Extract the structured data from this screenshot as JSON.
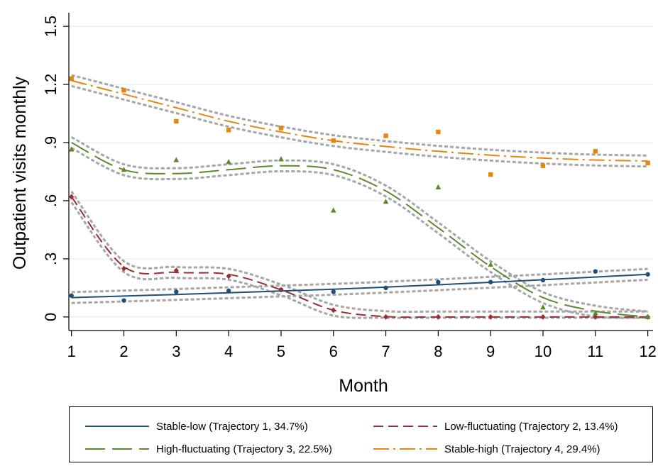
{
  "chart_data": {
    "type": "line",
    "xlabel": "Month",
    "ylabel": "Outpatient visits monthly",
    "x": [
      1,
      2,
      3,
      4,
      5,
      6,
      7,
      8,
      9,
      10,
      11,
      12
    ],
    "x_ticks": [
      "1",
      "2",
      "3",
      "4",
      "5",
      "6",
      "7",
      "8",
      "9",
      "10",
      "11",
      "12"
    ],
    "y_ticks": [
      "0",
      ".3",
      ".6",
      ".9",
      "1.2",
      "1.5"
    ],
    "xlim": [
      0.95,
      12.1
    ],
    "ylim": [
      -0.07,
      1.57
    ],
    "grid": true,
    "legend_position": "bottom",
    "series": [
      {
        "name": "Stable-low (Trajectory 1, 34.7%)",
        "color": "#1f4e79",
        "line_style": "solid",
        "marker": "circle",
        "fitted": [
          0.1,
          0.108,
          0.116,
          0.125,
          0.134,
          0.143,
          0.154,
          0.166,
          0.179,
          0.192,
          0.206,
          0.22
        ],
        "observed": [
          0.11,
          0.085,
          0.13,
          0.135,
          0.14,
          0.13,
          0.15,
          0.18,
          0.18,
          0.19,
          0.235,
          0.22
        ]
      },
      {
        "name": "Low-fluctuating (Trajectory 2, 13.4%)",
        "color": "#9b2d30",
        "line_style": "dashed",
        "marker": "diamond",
        "fitted": [
          0.62,
          0.26,
          0.23,
          0.22,
          0.14,
          0.035,
          0.002,
          0.0,
          0.0,
          0.0,
          0.0,
          0.0
        ],
        "observed": [
          0.62,
          0.25,
          0.24,
          0.21,
          0.14,
          0.035,
          0.0,
          0.0,
          0.0,
          0.0,
          0.0,
          0.0
        ]
      },
      {
        "name": "High-fluctuating (Trajectory 3, 22.5%)",
        "color": "#5a8a2c",
        "line_style": "longdash",
        "marker": "triangle",
        "fitted": [
          0.9,
          0.76,
          0.74,
          0.76,
          0.78,
          0.76,
          0.65,
          0.46,
          0.26,
          0.1,
          0.03,
          0.0
        ],
        "observed": [
          0.865,
          0.76,
          0.81,
          0.8,
          0.815,
          0.55,
          0.595,
          0.67,
          0.27,
          0.05,
          0.02,
          0.0
        ]
      },
      {
        "name": "Stable-high (Trajectory 4, 29.4%)",
        "color": "#e8850f",
        "line_style": "dashdot",
        "marker": "square",
        "fitted": [
          1.22,
          1.15,
          1.08,
          1.01,
          0.955,
          0.91,
          0.88,
          0.855,
          0.835,
          0.82,
          0.81,
          0.805
        ],
        "observed": [
          1.23,
          1.17,
          1.01,
          0.965,
          0.975,
          0.91,
          0.935,
          0.955,
          0.735,
          0.78,
          0.855,
          0.795
        ]
      }
    ]
  }
}
